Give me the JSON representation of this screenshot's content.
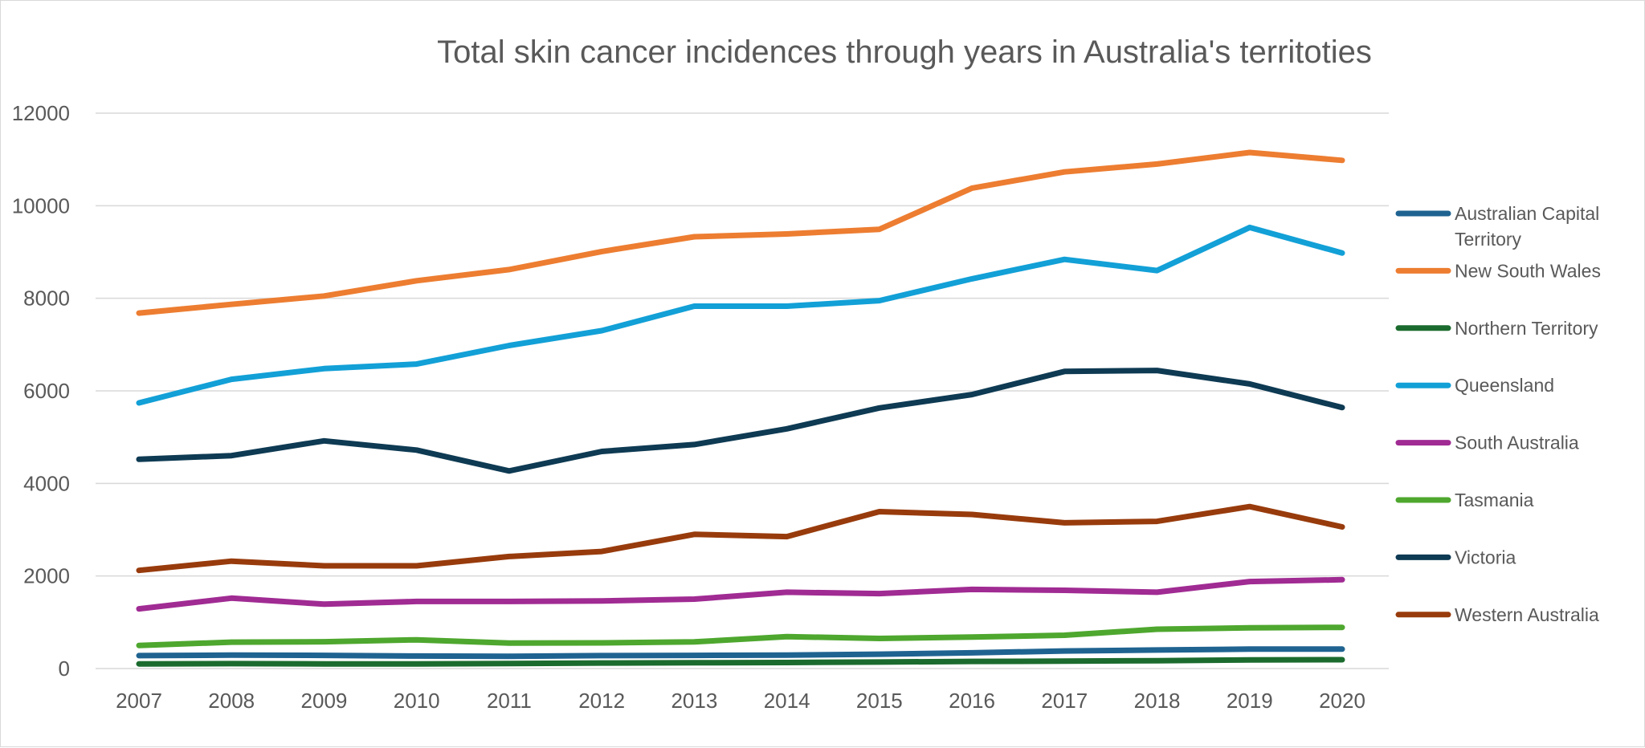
{
  "chart_data": {
    "type": "line",
    "title": "Total skin cancer incidences through years in Australia's territoties",
    "xlabel": "",
    "ylabel": "",
    "x": [
      "2007",
      "2008",
      "2009",
      "2010",
      "2011",
      "2012",
      "2013",
      "2014",
      "2015",
      "2016",
      "2017",
      "2018",
      "2019",
      "2020"
    ],
    "ylim": [
      0,
      12000
    ],
    "yticks": [
      "0",
      "2000",
      "4000",
      "6000",
      "8000",
      "10000",
      "12000"
    ],
    "grid": true,
    "legend_position": "right",
    "series": [
      {
        "name": "Australian Capital Territory",
        "color": "#1f6391",
        "values": [
          280,
          290,
          285,
          270,
          265,
          280,
          285,
          290,
          310,
          340,
          380,
          400,
          420,
          420
        ]
      },
      {
        "name": "New South Wales",
        "color": "#ed7d31",
        "values": [
          7680,
          7870,
          8050,
          8380,
          8620,
          9010,
          9330,
          9390,
          9490,
          10380,
          10730,
          10900,
          11150,
          10980
        ]
      },
      {
        "name": "Northern Territory",
        "color": "#1b6b2e",
        "values": [
          100,
          105,
          100,
          100,
          110,
          120,
          125,
          130,
          140,
          155,
          160,
          170,
          185,
          190
        ]
      },
      {
        "name": "Queensland",
        "color": "#12a0d7",
        "values": [
          5740,
          6250,
          6480,
          6580,
          6980,
          7300,
          7830,
          7830,
          7950,
          8420,
          8840,
          8600,
          9530,
          8980
        ]
      },
      {
        "name": "South Australia",
        "color": "#a02b93",
        "values": [
          1290,
          1520,
          1390,
          1450,
          1450,
          1460,
          1500,
          1650,
          1620,
          1710,
          1690,
          1650,
          1880,
          1920
        ]
      },
      {
        "name": "Tasmania",
        "color": "#4ea72e",
        "values": [
          500,
          570,
          580,
          620,
          550,
          555,
          575,
          690,
          650,
          680,
          720,
          850,
          880,
          890
        ]
      },
      {
        "name": "Victoria",
        "color": "#0e3a53",
        "values": [
          4520,
          4600,
          4920,
          4720,
          4270,
          4690,
          4840,
          5180,
          5630,
          5920,
          6420,
          6440,
          6150,
          5640
        ]
      },
      {
        "name": "Western Australia",
        "color": "#983b0c",
        "values": [
          2120,
          2320,
          2220,
          2220,
          2420,
          2530,
          2900,
          2850,
          3390,
          3330,
          3150,
          3180,
          3500,
          3060
        ]
      }
    ]
  }
}
